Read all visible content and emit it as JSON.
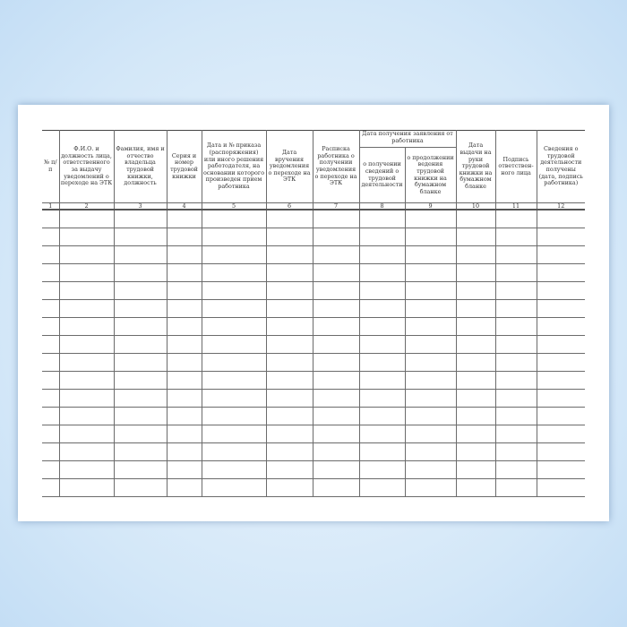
{
  "table": {
    "headers": [
      "№ п/п",
      "Ф.И.О. и должность лица, ответственного за выдачу уведомлений о переходе на ЭТК",
      "Фамилия, имя и отчество владельца трудовой книжки, должность",
      "Серия и номер трудовой книжки",
      "Дата и № приказа (распоряжения) или иного решения работодателя, на основании которого произведен прием работника",
      "Дата вручения уведомления о переходе на ЭТК",
      "Расписка работника о получении уведомления о переходе на ЭТК",
      "Дата получения заявления от работника",
      "Дата выдачи на руки трудовой книжки на бумажном бланке",
      "Подпись ответствен-ного лица",
      "Сведения о трудовой деятельности получены (дата, подпись работника)"
    ],
    "subheaders": [
      "о получении сведений о трудовой деятельности",
      "о продолжении ведения трудовой книжки на бумажном бланке"
    ],
    "column_numbers": [
      "1",
      "2",
      "3",
      "4",
      "5",
      "6",
      "7",
      "8",
      "9",
      "10",
      "11",
      "12"
    ],
    "empty_rows": 16
  }
}
